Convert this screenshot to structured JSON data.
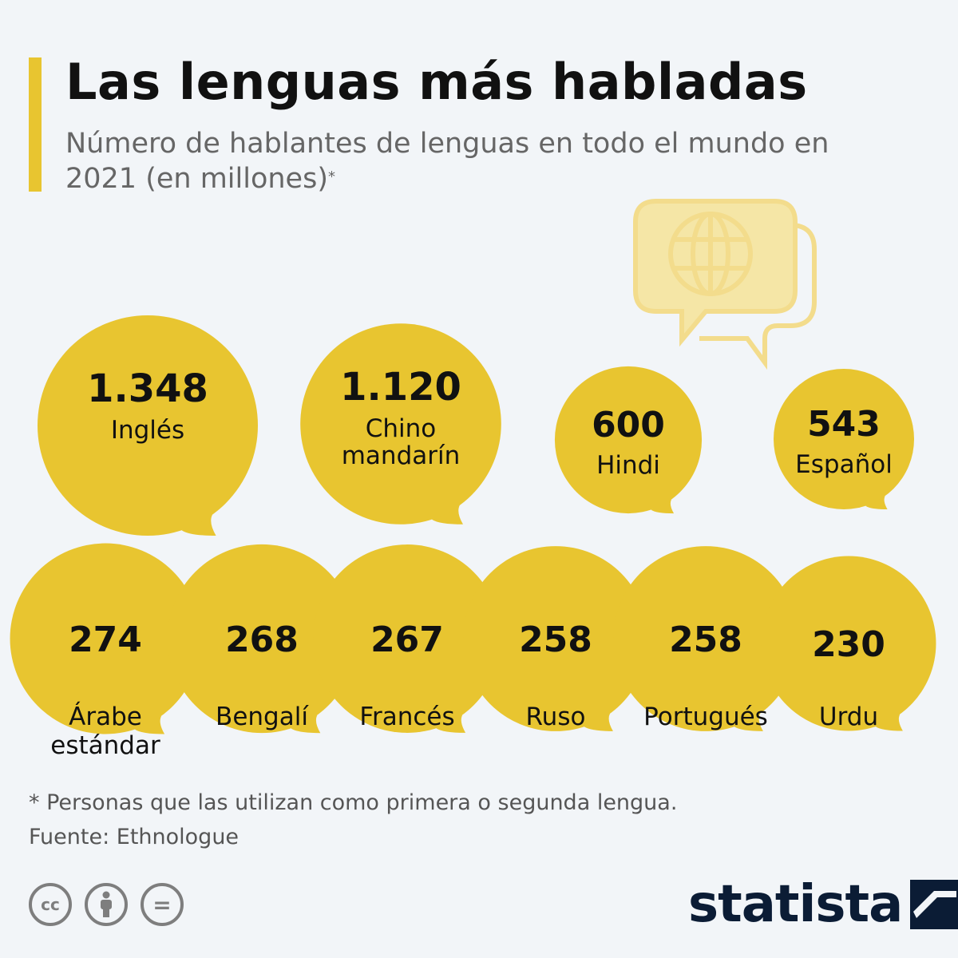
{
  "header": {
    "title": "Las lenguas más habladas",
    "subtitle": "Número de hablantes de lenguas en todo el mundo en 2021 (en millones)",
    "subtitle_mark": "*"
  },
  "colors": {
    "accent": "#e8c530",
    "bubble": "#e8c530",
    "globe_icon": "#f3dc8c",
    "brand": "#0b1c35",
    "background": "#f2f5f8"
  },
  "chart_data": {
    "type": "bubble",
    "unit": "millones",
    "categories": [
      "Inglés",
      "Chino mandarín",
      "Hindi",
      "Español",
      "Árabe estándar",
      "Bengalí",
      "Francés",
      "Ruso",
      "Portugués",
      "Urdu"
    ],
    "values": [
      1348,
      1120,
      600,
      543,
      274,
      268,
      267,
      258,
      258,
      230
    ],
    "value_labels": [
      "1.348",
      "1.120",
      "600",
      "543",
      "274",
      "268",
      "267",
      "258",
      "258",
      "230"
    ],
    "label_lines": [
      [
        "Inglés"
      ],
      [
        "Chino",
        "mandarín"
      ],
      [
        "Hindi"
      ],
      [
        "Español"
      ],
      [
        "Árabe",
        "estándar"
      ],
      [
        "Bengalí"
      ],
      [
        "Francés"
      ],
      [
        "Ruso"
      ],
      [
        "Portugués"
      ],
      [
        "Urdu"
      ]
    ]
  },
  "decor": {
    "icon": "globe-chat-icon"
  },
  "footer": {
    "note": "* Personas que las utilizan como primera o segunda lengua.",
    "source": "Fuente: Ethnologue",
    "license_icons": [
      "cc-icon",
      "attribution-icon",
      "no-derivatives-icon"
    ],
    "license_cc": "cc",
    "license_nd": "=",
    "brand": "statista"
  }
}
